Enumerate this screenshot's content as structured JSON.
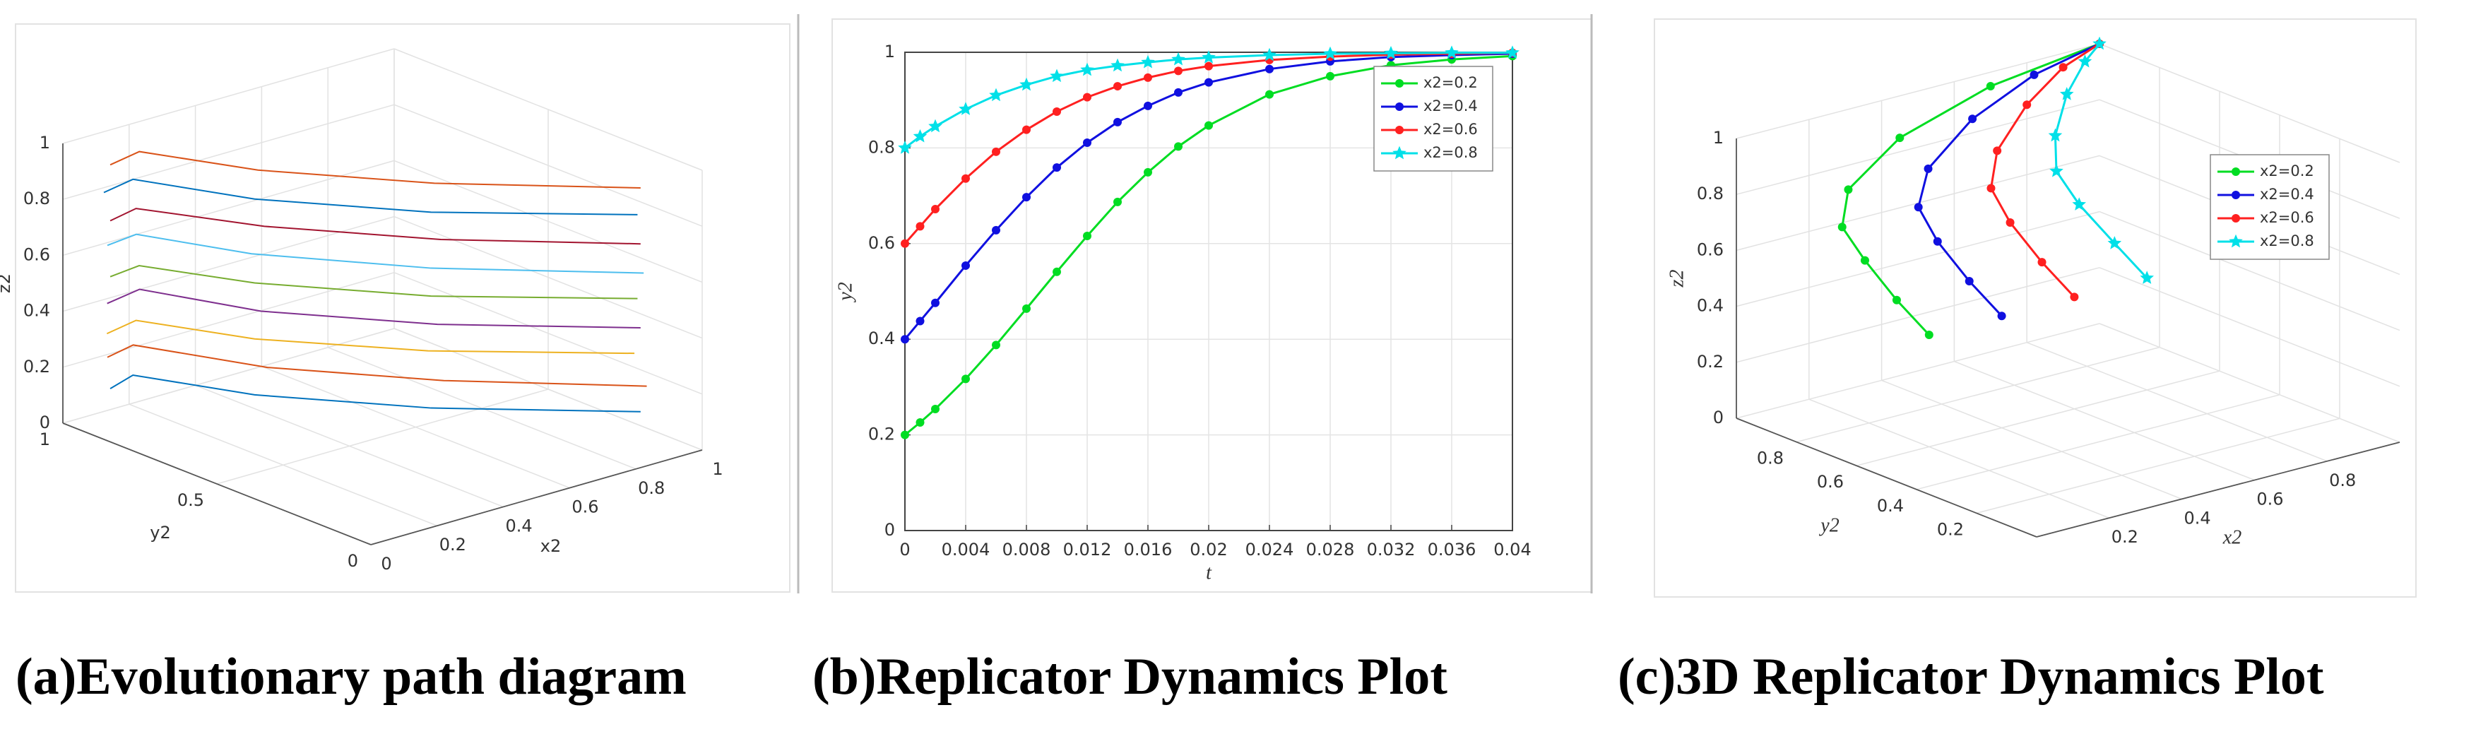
{
  "chart_data": [
    {
      "type": "line3d",
      "caption": "(a)Evolutionary path diagram",
      "xlabel": "x2",
      "ylabel": "y2",
      "zlabel": "z2",
      "xlim": [
        0,
        1
      ],
      "ylim": [
        0,
        1
      ],
      "zlim": [
        0,
        1
      ],
      "xticks": [
        0,
        0.2,
        0.4,
        0.6,
        0.8,
        1
      ],
      "yticks": [
        0,
        0.5,
        1
      ],
      "zticks": [
        0,
        0.2,
        0.4,
        0.6,
        0.8,
        1
      ],
      "grid": true,
      "paths": [
        {
          "color": "#0072BD",
          "x": [
            0.05,
            0.1,
            0.3,
            0.6,
            1
          ],
          "y": [
            0.9,
            0.88,
            0.7,
            0.45,
            0.2
          ],
          "z": [
            0.15,
            0.19,
            0.13,
            0.09,
            0.05
          ]
        },
        {
          "color": "#D95319",
          "x": [
            0.06,
            0.11,
            0.32,
            0.62,
            1
          ],
          "y": [
            0.92,
            0.89,
            0.68,
            0.43,
            0.18
          ],
          "z": [
            0.25,
            0.29,
            0.23,
            0.19,
            0.15
          ]
        },
        {
          "color": "#EDB120",
          "x": [
            0.04,
            0.1,
            0.3,
            0.6,
            1
          ],
          "y": [
            0.9,
            0.87,
            0.7,
            0.46,
            0.22
          ],
          "z": [
            0.35,
            0.39,
            0.33,
            0.29,
            0.25
          ]
        },
        {
          "color": "#7E2F8E",
          "x": [
            0.05,
            0.12,
            0.31,
            0.61,
            1
          ],
          "y": [
            0.91,
            0.88,
            0.69,
            0.44,
            0.2
          ],
          "z": [
            0.45,
            0.49,
            0.43,
            0.39,
            0.35
          ]
        },
        {
          "color": "#77AC30",
          "x": [
            0.05,
            0.1,
            0.3,
            0.6,
            1
          ],
          "y": [
            0.9,
            0.86,
            0.7,
            0.45,
            0.21
          ],
          "z": [
            0.55,
            0.59,
            0.53,
            0.49,
            0.45
          ]
        },
        {
          "color": "#4DBEEE",
          "x": [
            0.06,
            0.11,
            0.3,
            0.6,
            1
          ],
          "y": [
            0.92,
            0.88,
            0.71,
            0.45,
            0.19
          ],
          "z": [
            0.65,
            0.69,
            0.63,
            0.59,
            0.55
          ]
        },
        {
          "color": "#A2142F",
          "x": [
            0.05,
            0.1,
            0.32,
            0.62,
            1
          ],
          "y": [
            0.9,
            0.87,
            0.69,
            0.44,
            0.2
          ],
          "z": [
            0.75,
            0.79,
            0.73,
            0.69,
            0.65
          ]
        },
        {
          "color": "#0072BD",
          "x": [
            0.04,
            0.1,
            0.3,
            0.6,
            1
          ],
          "y": [
            0.91,
            0.88,
            0.7,
            0.45,
            0.21
          ],
          "z": [
            0.85,
            0.89,
            0.83,
            0.79,
            0.75
          ]
        },
        {
          "color": "#D95319",
          "x": [
            0.05,
            0.11,
            0.31,
            0.61,
            1
          ],
          "y": [
            0.9,
            0.87,
            0.7,
            0.45,
            0.2
          ],
          "z": [
            0.95,
            0.99,
            0.93,
            0.89,
            0.85
          ]
        }
      ]
    },
    {
      "type": "line",
      "caption": "(b)Replicator Dynamics Plot",
      "xlabel": "t",
      "ylabel": "y2",
      "x": [
        0,
        0.001,
        0.002,
        0.004,
        0.006,
        0.008,
        0.01,
        0.012,
        0.014,
        0.016,
        0.018,
        0.02,
        0.024,
        0.028,
        0.032,
        0.036,
        0.04
      ],
      "xlim": [
        0,
        0.04
      ],
      "xticks": [
        0,
        0.004,
        0.008,
        0.012,
        0.016,
        0.02,
        0.024,
        0.028,
        0.032,
        0.036,
        0.04
      ],
      "ylim": [
        0,
        1
      ],
      "yticks": [
        0,
        0.2,
        0.4,
        0.6,
        0.8,
        1
      ],
      "grid": true,
      "legend": "upper right",
      "series": [
        {
          "name": "x2=0.2",
          "color": "#00dd22",
          "marker": "o",
          "values": [
            0.2,
            0.226,
            0.254,
            0.317,
            0.388,
            0.464,
            0.541,
            0.616,
            0.687,
            0.749,
            0.803,
            0.847,
            0.912,
            0.95,
            0.973,
            0.985,
            0.992
          ]
        },
        {
          "name": "x2=0.4",
          "color": "#1010e0",
          "marker": "o",
          "values": [
            0.4,
            0.438,
            0.476,
            0.554,
            0.628,
            0.697,
            0.759,
            0.811,
            0.854,
            0.888,
            0.916,
            0.937,
            0.965,
            0.981,
            0.99,
            0.994,
            0.997
          ]
        },
        {
          "name": "x2=0.6",
          "color": "#ff2020",
          "marker": "o",
          "values": [
            0.6,
            0.636,
            0.672,
            0.736,
            0.792,
            0.838,
            0.876,
            0.906,
            0.929,
            0.947,
            0.961,
            0.971,
            0.984,
            0.991,
            0.995,
            0.997,
            0.999
          ]
        },
        {
          "name": "x2=0.8",
          "color": "#00e0e8",
          "marker": "*",
          "values": [
            0.8,
            0.824,
            0.845,
            0.881,
            0.91,
            0.932,
            0.95,
            0.963,
            0.972,
            0.979,
            0.985,
            0.989,
            0.994,
            0.997,
            0.998,
            0.999,
            0.999
          ]
        }
      ]
    },
    {
      "type": "line3d",
      "caption": "(c)3D Replicator Dynamics Plot",
      "xlabel": "x2",
      "ylabel": "y2",
      "zlabel": "z2",
      "xlim": [
        0,
        1
      ],
      "ylim": [
        0,
        1
      ],
      "zlim": [
        0,
        1
      ],
      "xticks": [
        0.2,
        0.4,
        0.6,
        0.8
      ],
      "yticks": [
        0.2,
        0.4,
        0.6,
        0.8
      ],
      "zticks": [
        0,
        0.2,
        0.4,
        0.6,
        0.8,
        1
      ],
      "grid": true,
      "legend": "upper right",
      "series": [
        {
          "name": "x2=0.2",
          "color": "#00dd22",
          "marker": "o",
          "x": [
            0.2,
            0.21,
            0.23,
            0.25,
            0.3,
            0.45,
            0.7,
            1
          ],
          "y": [
            0.6,
            0.72,
            0.85,
            0.95,
            0.99,
            1,
            1,
            1
          ],
          "z": [
            0.4,
            0.47,
            0.55,
            0.62,
            0.72,
            0.85,
            0.95,
            1
          ]
        },
        {
          "name": "x2=0.4",
          "color": "#1010e0",
          "marker": "o",
          "x": [
            0.4,
            0.41,
            0.43,
            0.46,
            0.52,
            0.65,
            0.82,
            1
          ],
          "y": [
            0.6,
            0.72,
            0.85,
            0.95,
            0.99,
            1,
            1,
            1
          ],
          "z": [
            0.4,
            0.47,
            0.55,
            0.62,
            0.72,
            0.85,
            0.95,
            1
          ]
        },
        {
          "name": "x2=0.6",
          "color": "#ff2020",
          "marker": "o",
          "x": [
            0.6,
            0.61,
            0.63,
            0.66,
            0.71,
            0.8,
            0.9,
            1
          ],
          "y": [
            0.6,
            0.72,
            0.85,
            0.95,
            0.99,
            1,
            1,
            1
          ],
          "z": [
            0.4,
            0.47,
            0.55,
            0.62,
            0.72,
            0.85,
            0.95,
            1
          ]
        },
        {
          "name": "x2=0.8",
          "color": "#00e0e8",
          "marker": "*",
          "x": [
            0.8,
            0.81,
            0.82,
            0.84,
            0.87,
            0.91,
            0.96,
            1
          ],
          "y": [
            0.6,
            0.72,
            0.85,
            0.95,
            0.99,
            1,
            1,
            1
          ],
          "z": [
            0.4,
            0.47,
            0.55,
            0.62,
            0.72,
            0.85,
            0.95,
            1
          ]
        }
      ]
    }
  ]
}
